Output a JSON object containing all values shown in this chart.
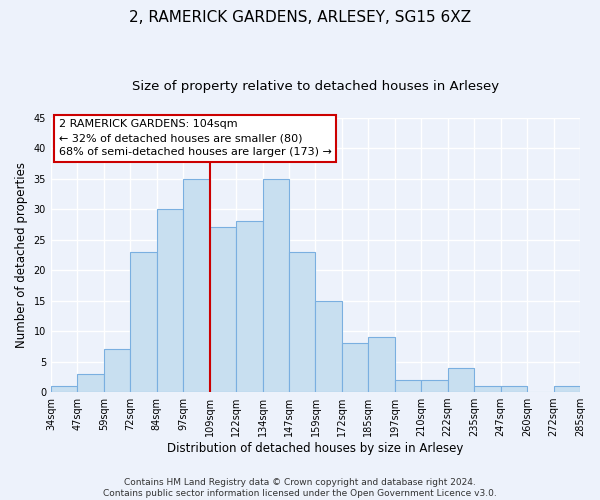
{
  "title": "2, RAMERICK GARDENS, ARLESEY, SG15 6XZ",
  "subtitle": "Size of property relative to detached houses in Arlesey",
  "xlabel": "Distribution of detached houses by size in Arlesey",
  "ylabel": "Number of detached properties",
  "bin_labels": [
    "34sqm",
    "47sqm",
    "59sqm",
    "72sqm",
    "84sqm",
    "97sqm",
    "109sqm",
    "122sqm",
    "134sqm",
    "147sqm",
    "159sqm",
    "172sqm",
    "185sqm",
    "197sqm",
    "210sqm",
    "222sqm",
    "235sqm",
    "247sqm",
    "260sqm",
    "272sqm",
    "285sqm"
  ],
  "bar_heights": [
    1,
    3,
    7,
    23,
    30,
    35,
    27,
    28,
    35,
    23,
    15,
    8,
    9,
    2,
    2,
    4,
    1,
    1,
    0,
    1
  ],
  "bar_color": "#c8dff0",
  "bar_edge_color": "#7aafe0",
  "reference_line_x": 6.0,
  "reference_line_color": "#cc0000",
  "annotation_line1": "2 RAMERICK GARDENS: 104sqm",
  "annotation_line2": "← 32% of detached houses are smaller (80)",
  "annotation_line3": "68% of semi-detached houses are larger (173) →",
  "annotation_box_color": "white",
  "annotation_box_edge_color": "#cc0000",
  "ylim": [
    0,
    45
  ],
  "yticks": [
    0,
    5,
    10,
    15,
    20,
    25,
    30,
    35,
    40,
    45
  ],
  "footer_line1": "Contains HM Land Registry data © Crown copyright and database right 2024.",
  "footer_line2": "Contains public sector information licensed under the Open Government Licence v3.0.",
  "background_color": "#edf2fb",
  "grid_color": "white",
  "title_fontsize": 11,
  "subtitle_fontsize": 9.5,
  "axis_label_fontsize": 8.5,
  "tick_fontsize": 7,
  "annotation_fontsize": 8,
  "footer_fontsize": 6.5
}
